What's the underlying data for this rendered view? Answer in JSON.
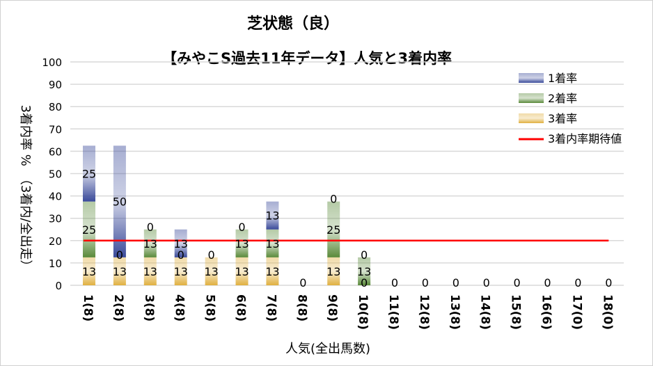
{
  "chart_data": {
    "type": "bar",
    "stacked": true,
    "title": "芝状態（良）",
    "subtitle": "【みやこS過去11年データ】人気と3着内率",
    "xlabel": "人気(全出馬数)",
    "ylabel": "3着内率 %　（3着内/全出走）",
    "ylim": [
      0,
      100
    ],
    "yticks": [
      0,
      10,
      20,
      30,
      40,
      50,
      60,
      70,
      80,
      90,
      100
    ],
    "grid": true,
    "legend_position": "top-right",
    "categories": [
      "1(8)",
      "2(8)",
      "3(8)",
      "4(8)",
      "5(8)",
      "6(8)",
      "7(8)",
      "8(8)",
      "9(8)",
      "10(8)",
      "11(8)",
      "12(8)",
      "13(8)",
      "14(8)",
      "15(8)",
      "16(6)",
      "17(0)",
      "18(0)"
    ],
    "series": [
      {
        "name": "3着率",
        "color": "#e0b040",
        "values": [
          12.5,
          12.5,
          12.5,
          12.5,
          12.5,
          12.5,
          12.5,
          0,
          12.5,
          0,
          0,
          0,
          0,
          0,
          0,
          0,
          0,
          0
        ]
      },
      {
        "name": "2着率",
        "color": "#5a8a3a",
        "values": [
          25,
          0,
          12.5,
          0,
          0,
          12.5,
          12.5,
          0,
          25,
          12.5,
          0,
          0,
          0,
          0,
          0,
          0,
          0,
          0
        ]
      },
      {
        "name": "1着率",
        "color": "#3a4a9a",
        "values": [
          25,
          50,
          0,
          12.5,
          0,
          0,
          12.5,
          0,
          0,
          0,
          0,
          0,
          0,
          0,
          0,
          0,
          0,
          0
        ]
      }
    ],
    "reference_line": {
      "name": "3着内率期待値",
      "value": 20,
      "color": "#ff0000"
    }
  }
}
